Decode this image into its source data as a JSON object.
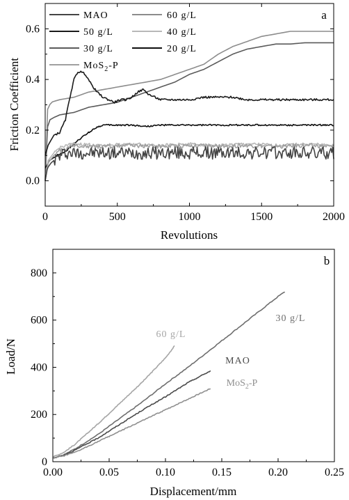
{
  "chart_data": [
    {
      "type": "line",
      "panel_label": "a",
      "xlabel": "Revolutions",
      "ylabel": "Friction Coefficient",
      "xlim": [
        0,
        2000
      ],
      "ylim": [
        -0.1,
        0.7
      ],
      "xticks": [
        "0",
        "500",
        "1000",
        "1500",
        "2000"
      ],
      "yticks": [
        "0.0",
        "0.2",
        "0.4",
        "0.6"
      ],
      "legend_position": "top-left",
      "series": [
        {
          "name": "MAO",
          "color": "#444444",
          "noise": 0.025,
          "x": [
            0,
            15,
            40,
            80,
            110,
            130,
            160,
            200,
            400,
            600,
            800,
            1000,
            1200,
            1400,
            1600,
            1800,
            2000
          ],
          "y": [
            0.0,
            0.05,
            0.07,
            0.09,
            0.1,
            0.11,
            0.11,
            0.11,
            0.11,
            0.11,
            0.11,
            0.11,
            0.11,
            0.11,
            0.11,
            0.11,
            0.11
          ]
        },
        {
          "name": "60 g/L",
          "color": "#8c8c8c",
          "noise": 0,
          "x": [
            0,
            15,
            40,
            100,
            200,
            300,
            400,
            500,
            600,
            700,
            800,
            900,
            1000,
            1100,
            1200,
            1300,
            1400,
            1500,
            1600,
            1700,
            1800,
            1900,
            2000
          ],
          "y": [
            0.0,
            0.28,
            0.31,
            0.32,
            0.33,
            0.35,
            0.36,
            0.37,
            0.38,
            0.39,
            0.4,
            0.42,
            0.44,
            0.46,
            0.5,
            0.53,
            0.55,
            0.57,
            0.58,
            0.59,
            0.59,
            0.59,
            0.59
          ]
        },
        {
          "name": "50 g/L",
          "color": "#1a1a1a",
          "noise": 0.004,
          "x": [
            0,
            20,
            60,
            100,
            140,
            175,
            200,
            225,
            250,
            280,
            320,
            360,
            400,
            440,
            480,
            520,
            560,
            600,
            640,
            680,
            720,
            760,
            800,
            900,
            1000,
            1100,
            1200,
            1300,
            1400,
            1500,
            1600,
            1700,
            1800,
            1900,
            2000
          ],
          "y": [
            0.1,
            0.14,
            0.18,
            0.19,
            0.24,
            0.34,
            0.4,
            0.43,
            0.43,
            0.42,
            0.38,
            0.35,
            0.33,
            0.32,
            0.31,
            0.32,
            0.32,
            0.33,
            0.35,
            0.36,
            0.34,
            0.33,
            0.32,
            0.32,
            0.32,
            0.33,
            0.33,
            0.33,
            0.32,
            0.32,
            0.32,
            0.32,
            0.32,
            0.32,
            0.32
          ]
        },
        {
          "name": "40 g/L",
          "color": "#b8b8b8",
          "noise": 0.006,
          "x": [
            0,
            20,
            60,
            100,
            140,
            200,
            400,
            600,
            800,
            1000,
            1200,
            1400,
            1600,
            1800,
            2000
          ],
          "y": [
            0.0,
            0.08,
            0.11,
            0.13,
            0.14,
            0.145,
            0.14,
            0.145,
            0.14,
            0.145,
            0.14,
            0.145,
            0.14,
            0.145,
            0.14
          ]
        },
        {
          "name": "30 g/L",
          "color": "#5a5a5a",
          "noise": 0,
          "x": [
            0,
            10,
            30,
            60,
            100,
            200,
            300,
            400,
            500,
            600,
            700,
            800,
            900,
            1000,
            1100,
            1200,
            1300,
            1400,
            1500,
            1600,
            1700,
            1800,
            1900,
            2000
          ],
          "y": [
            0.0,
            0.2,
            0.24,
            0.25,
            0.26,
            0.27,
            0.29,
            0.3,
            0.31,
            0.33,
            0.35,
            0.37,
            0.39,
            0.42,
            0.44,
            0.47,
            0.5,
            0.52,
            0.53,
            0.54,
            0.54,
            0.545,
            0.545,
            0.545
          ]
        },
        {
          "name": "20 g/L",
          "color": "#0d0d0d",
          "noise": 0.003,
          "x": [
            0,
            30,
            80,
            150,
            250,
            350,
            400,
            500,
            600,
            700,
            800,
            900,
            1000,
            1200,
            1400,
            1600,
            1800,
            2000
          ],
          "y": [
            0.05,
            0.08,
            0.1,
            0.12,
            0.17,
            0.21,
            0.22,
            0.22,
            0.22,
            0.215,
            0.22,
            0.22,
            0.22,
            0.22,
            0.22,
            0.22,
            0.22,
            0.22
          ]
        },
        {
          "name": "MoS2-P",
          "color": "#a0a0a0",
          "noise": 0.008,
          "x": [
            0,
            20,
            60,
            100,
            150,
            200,
            400,
            600,
            800,
            1000,
            1200,
            1400,
            1600,
            1800,
            2000
          ],
          "y": [
            0.0,
            0.07,
            0.1,
            0.12,
            0.13,
            0.14,
            0.135,
            0.14,
            0.135,
            0.14,
            0.135,
            0.14,
            0.135,
            0.14,
            0.135
          ]
        }
      ]
    },
    {
      "type": "line",
      "panel_label": "b",
      "xlabel": "Displacement/mm",
      "ylabel": "Load/N",
      "xlim": [
        0,
        0.25
      ],
      "ylim": [
        0,
        900
      ],
      "xticks": [
        "0.00",
        "0.05",
        "0.10",
        "0.15",
        "0.20",
        "0.25"
      ],
      "yticks": [
        "0",
        "200",
        "400",
        "600",
        "800"
      ],
      "series": [
        {
          "name": "30 g/L",
          "color": "#6e6e6e",
          "x": [
            0,
            0.01,
            0.02,
            0.04,
            0.06,
            0.08,
            0.1,
            0.12,
            0.14,
            0.16,
            0.18,
            0.2,
            0.206
          ],
          "y": [
            15,
            30,
            55,
            115,
            185,
            255,
            330,
            400,
            475,
            550,
            625,
            700,
            720
          ]
        },
        {
          "name": "60 g/L",
          "color": "#a5a5a5",
          "x": [
            0,
            0.01,
            0.02,
            0.04,
            0.06,
            0.08,
            0.1,
            0.108
          ],
          "y": [
            20,
            40,
            75,
            160,
            250,
            340,
            440,
            490
          ]
        },
        {
          "name": "MAO",
          "color": "#4a4a4a",
          "x": [
            0,
            0.01,
            0.02,
            0.04,
            0.06,
            0.08,
            0.1,
            0.12,
            0.14
          ],
          "y": [
            15,
            28,
            50,
            100,
            160,
            220,
            275,
            335,
            385
          ]
        },
        {
          "name": "MoS2-P",
          "color": "#8f8f8f",
          "x": [
            0,
            0.01,
            0.02,
            0.04,
            0.06,
            0.08,
            0.1,
            0.12,
            0.14
          ],
          "y": [
            15,
            25,
            40,
            85,
            130,
            175,
            220,
            265,
            310
          ]
        }
      ]
    }
  ]
}
